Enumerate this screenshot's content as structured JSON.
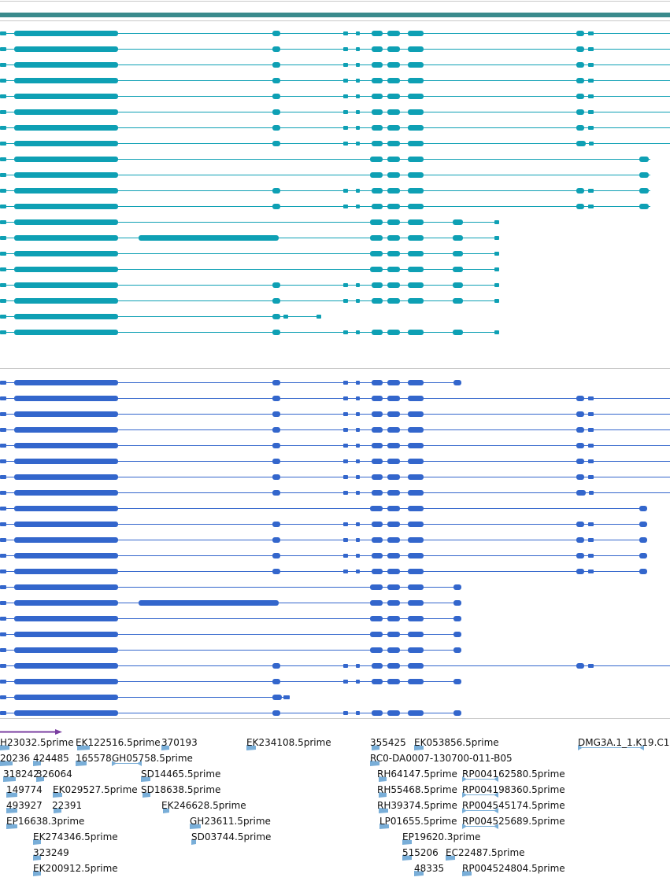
{
  "colors": {
    "track_header": "#3a8a8c",
    "transcript_teal": "#0ea0b4",
    "transcript_blue": "#3366cc",
    "est_marker": "#79aed8",
    "scale_arrow": "#7a3ea0",
    "divider": "#c8c8c8",
    "label_text": "#111111"
  },
  "est_labels": [
    {
      "text": "H23032.5prime"
    },
    {
      "text": "EK122516.5prime"
    },
    {
      "text": "370193"
    },
    {
      "text": "EK234108.5prime"
    },
    {
      "text": "355425"
    },
    {
      "text": "EK053856.5prime"
    },
    {
      "text": "DMG3A.1_1.K19.C1"
    },
    {
      "text": "20236"
    },
    {
      "text": "424485"
    },
    {
      "text": "165578"
    },
    {
      "text": "GH05758.5prime"
    },
    {
      "text": "RC0-DA0007-130700-011-B05"
    },
    {
      "text": "318242"
    },
    {
      "text": "326064"
    },
    {
      "text": "SD14465.5prime"
    },
    {
      "text": "RH64147.5prime"
    },
    {
      "text": "RP004162580.5prime"
    },
    {
      "text": "149774"
    },
    {
      "text": "EK029527.5prime"
    },
    {
      "text": "SD18638.5prime"
    },
    {
      "text": "RH55468.5prime"
    },
    {
      "text": "RP004198360.5prime"
    },
    {
      "text": "493927"
    },
    {
      "text": "22391"
    },
    {
      "text": "EK246628.5prime"
    },
    {
      "text": "RH39374.5prime"
    },
    {
      "text": "RP004545174.5prime"
    },
    {
      "text": "EP16638.3prime"
    },
    {
      "text": "GH23611.5prime"
    },
    {
      "text": "LP01655.5prime"
    },
    {
      "text": "RP004525689.5prime"
    },
    {
      "text": "EK274346.5prime"
    },
    {
      "text": "SD03744.5prime"
    },
    {
      "text": "EP19620.3prime"
    },
    {
      "text": "323249"
    },
    {
      "text": "515206"
    },
    {
      "text": "EC22487.5prime"
    },
    {
      "text": "EK200912.5prime"
    },
    {
      "text": "48335"
    },
    {
      "text": "RP004524804.5prime"
    }
  ]
}
